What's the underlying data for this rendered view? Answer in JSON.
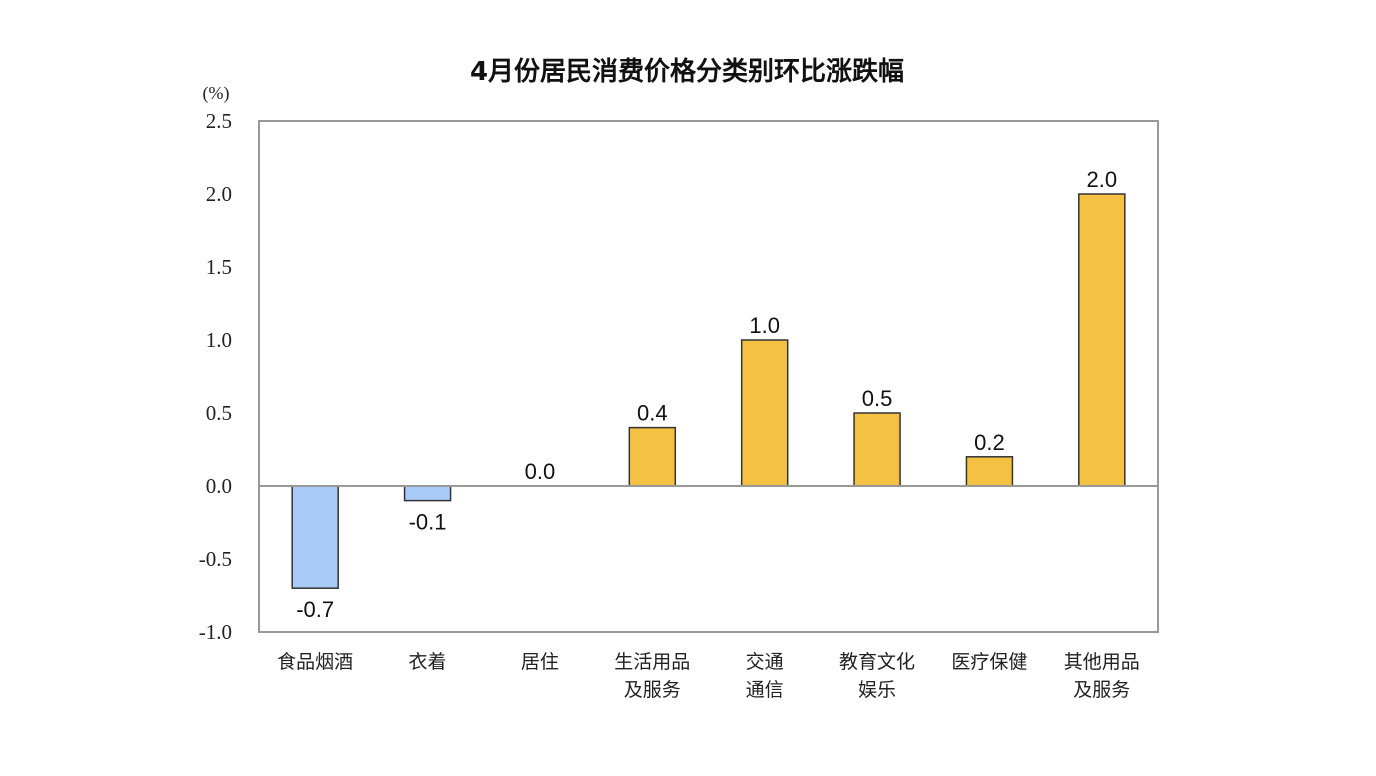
{
  "chart_data": {
    "type": "bar",
    "title": "4月份居民消费价格分类别环比涨跌幅",
    "unit_label": "(%)",
    "xlabel": "",
    "ylabel": "",
    "ylim": [
      -1.0,
      2.5
    ],
    "y_ticks": [
      "2.5",
      "2.0",
      "1.5",
      "1.0",
      "0.5",
      "0.0",
      "-0.5",
      "-1.0"
    ],
    "y_tick_values": [
      2.5,
      2.0,
      1.5,
      1.0,
      0.5,
      0.0,
      -0.5,
      -1.0
    ],
    "grid": false,
    "legend": "none",
    "categories": [
      [
        "食品烟酒"
      ],
      [
        "衣着"
      ],
      [
        "居住"
      ],
      [
        "生活用品",
        "及服务"
      ],
      [
        "交通",
        "通信"
      ],
      [
        "教育文化",
        "娱乐"
      ],
      [
        "医疗保健"
      ],
      [
        "其他用品",
        "及服务"
      ]
    ],
    "values": [
      -0.7,
      -0.1,
      0.0,
      0.4,
      1.0,
      0.5,
      0.2,
      2.0
    ],
    "data_labels": [
      "-0.7",
      "-0.1",
      "0.0",
      "0.4",
      "1.0",
      "0.5",
      "0.2",
      "2.0"
    ],
    "colors": {
      "positive": "#F4C142",
      "negative": "#A9CBF7",
      "bar_border": "#333333",
      "axis": "#999999"
    }
  }
}
